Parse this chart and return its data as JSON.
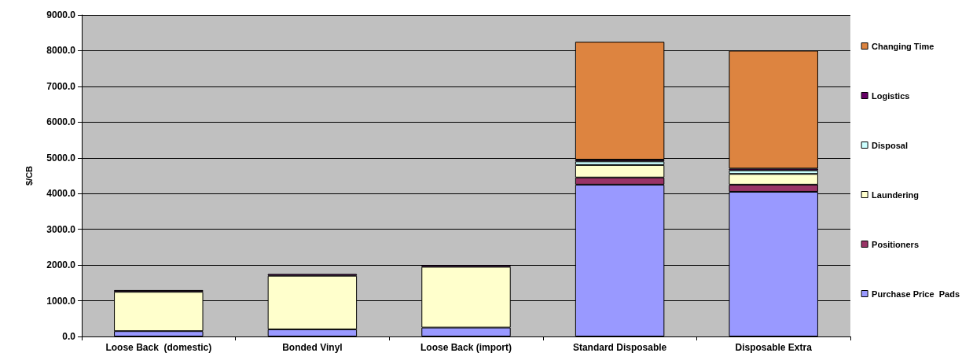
{
  "chart_data": {
    "type": "bar",
    "stacked": true,
    "ylabel": "$/CB",
    "categories": [
      "Loose Back  (domestic)",
      "Bonded Vinyl",
      "Loose Back (import)",
      "Standard Disposable",
      "Disposable Extra"
    ],
    "series": [
      {
        "name": "Purchase Price  Pads",
        "color": "#9999ff",
        "values": [
          150,
          200,
          250,
          4250,
          4050
        ]
      },
      {
        "name": "Positioners",
        "color": "#993366",
        "values": [
          null,
          null,
          null,
          200,
          200
        ]
      },
      {
        "name": "Laundering",
        "color": "#ffffcc",
        "values": [
          1100,
          1500,
          1700,
          350,
          300
        ]
      },
      {
        "name": "Disposal",
        "color": "#ccffff",
        "values": [
          null,
          null,
          null,
          100,
          100
        ]
      },
      {
        "name": "Logistics",
        "color": "#660066",
        "values": [
          50,
          50,
          50,
          50,
          50
        ]
      },
      {
        "name": "Changing Time",
        "color": "#dd8440",
        "values": [
          null,
          null,
          null,
          3300,
          3300
        ]
      }
    ],
    "ylim": [
      0,
      9000
    ],
    "yticks": [
      {
        "value": 0,
        "label": "0.0"
      },
      {
        "value": 1000,
        "label": "1000.0"
      },
      {
        "value": 2000,
        "label": "2000.0"
      },
      {
        "value": 3000,
        "label": "3000.0"
      },
      {
        "value": 4000,
        "label": "4000.0"
      },
      {
        "value": 5000,
        "label": "5000.0"
      },
      {
        "value": 6000,
        "label": "6000.0"
      },
      {
        "value": 7000,
        "label": "7000.0"
      },
      {
        "value": 8000,
        "label": "8000.0"
      },
      {
        "value": 9000,
        "label": "9000.0"
      }
    ],
    "grid": "y",
    "legend": "right"
  }
}
